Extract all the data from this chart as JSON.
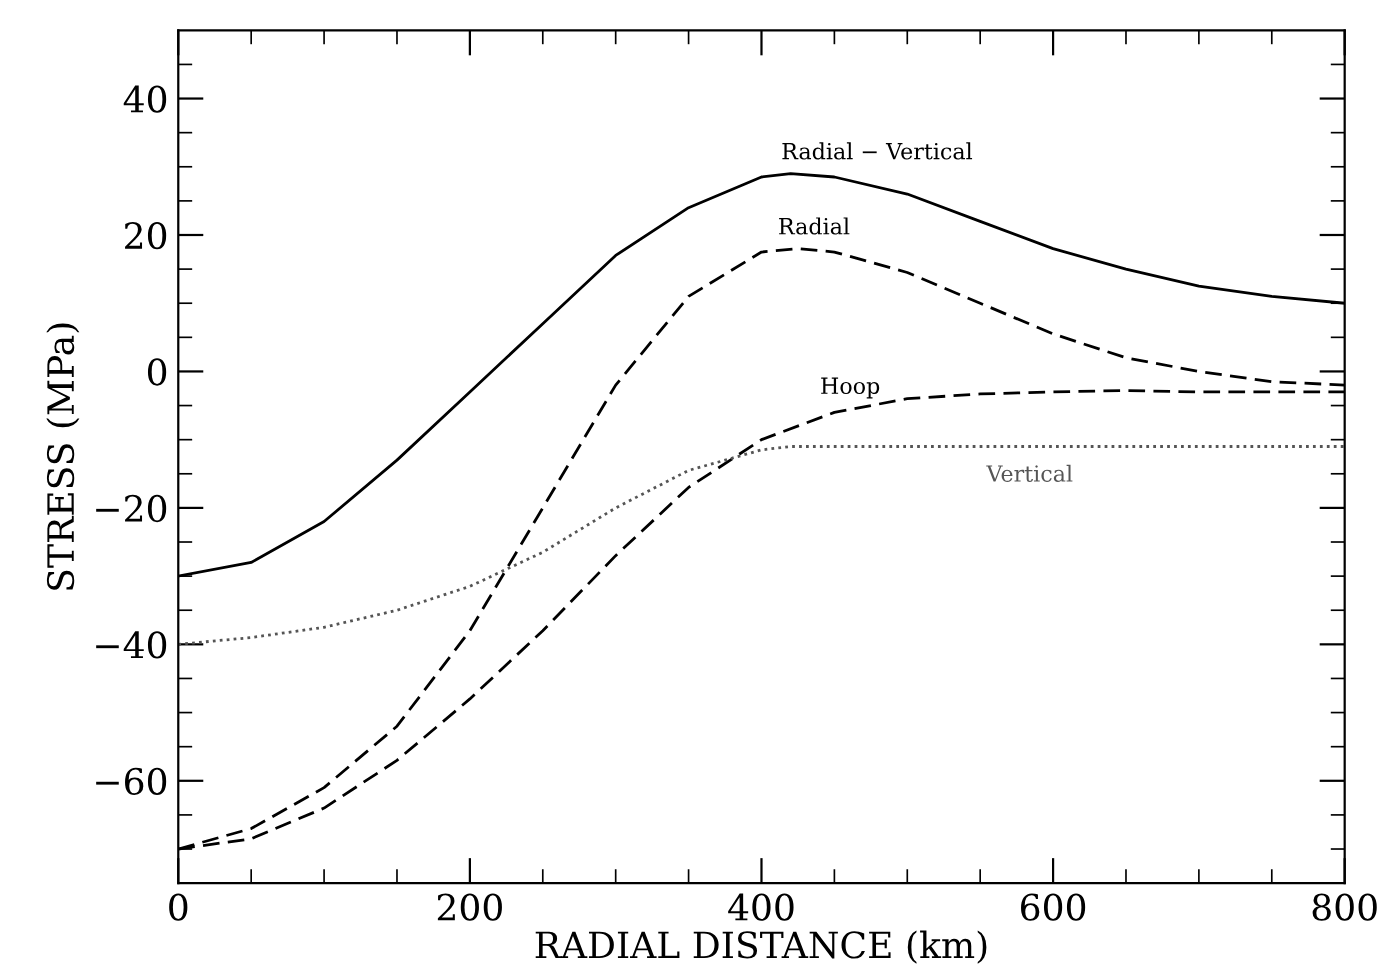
{
  "chart_data": {
    "type": "line",
    "xlabel": "RADIAL DISTANCE (km)",
    "ylabel": "STRESS (MPa)",
    "xlim": [
      0,
      800
    ],
    "ylim": [
      -75,
      50
    ],
    "xticks": [
      0,
      {
        "value": 50,
        "label": null
      },
      {
        "value": 100,
        "label": null
      },
      {
        "value": 150,
        "label": null
      },
      200,
      {
        "value": 250,
        "label": null
      },
      {
        "value": 300,
        "label": null
      },
      {
        "value": 350,
        "label": null
      },
      400,
      {
        "value": 450,
        "label": null
      },
      {
        "value": 500,
        "label": null
      },
      {
        "value": 550,
        "label": null
      },
      600,
      {
        "value": 650,
        "label": null
      },
      {
        "value": 700,
        "label": null
      },
      {
        "value": 750,
        "label": null
      },
      800
    ],
    "yticks": [
      {
        "value": -70,
        "label": null
      },
      {
        "value": -65,
        "label": null
      },
      -60,
      {
        "value": -55,
        "label": null
      },
      {
        "value": -50,
        "label": null
      },
      {
        "value": -45,
        "label": null
      },
      -40,
      {
        "value": -35,
        "label": null
      },
      {
        "value": -30,
        "label": null
      },
      {
        "value": -25,
        "label": null
      },
      -20,
      {
        "value": -15,
        "label": null
      },
      {
        "value": -10,
        "label": null
      },
      {
        "value": -5,
        "label": null
      },
      0,
      {
        "value": 5,
        "label": null
      },
      {
        "value": 10,
        "label": null
      },
      {
        "value": 15,
        "label": null
      },
      20,
      {
        "value": 25,
        "label": null
      },
      {
        "value": 30,
        "label": null
      },
      {
        "value": 35,
        "label": null
      },
      40,
      {
        "value": 45,
        "label": null
      }
    ],
    "grid": false,
    "legend": false,
    "marker": "none",
    "series": [
      {
        "name": "Radial − Vertical",
        "color": "#000000",
        "line_style": "solid",
        "x": [
          0,
          50,
          100,
          150,
          200,
          250,
          300,
          350,
          400,
          420,
          450,
          500,
          550,
          600,
          650,
          700,
          750,
          800
        ],
        "values": [
          -30,
          -28,
          -22,
          -13,
          -3,
          7,
          17,
          24,
          28.5,
          29,
          28.5,
          26,
          22,
          18,
          15,
          12.5,
          11,
          10
        ]
      },
      {
        "name": "Radial",
        "color": "#000000",
        "line_style": "dashed",
        "x": [
          0,
          50,
          100,
          150,
          200,
          250,
          300,
          350,
          400,
          425,
          450,
          500,
          550,
          600,
          650,
          700,
          750,
          800
        ],
        "values": [
          -70,
          -67,
          -61,
          -52,
          -38,
          -20,
          -2,
          11,
          17.5,
          18,
          17.5,
          14.5,
          10,
          5.5,
          2,
          0,
          -1.5,
          -2
        ]
      },
      {
        "name": "Hoop",
        "color": "#000000",
        "line_style": "dashed",
        "x": [
          0,
          50,
          100,
          150,
          200,
          250,
          300,
          350,
          400,
          450,
          500,
          550,
          600,
          650,
          700,
          800
        ],
        "values": [
          -70,
          -68.5,
          -64,
          -57,
          -48,
          -38,
          -27,
          -17,
          -10,
          -6,
          -4,
          -3.3,
          -3,
          -2.8,
          -3,
          -3
        ]
      },
      {
        "name": "Vertical",
        "color": "#555555",
        "line_style": "dotted",
        "x": [
          0,
          50,
          100,
          150,
          200,
          250,
          300,
          350,
          400,
          420,
          800
        ],
        "values": [
          -40,
          -39,
          -37.5,
          -35,
          -31.5,
          -26.5,
          -20,
          -14.5,
          -11.5,
          -11,
          -11
        ]
      }
    ]
  }
}
